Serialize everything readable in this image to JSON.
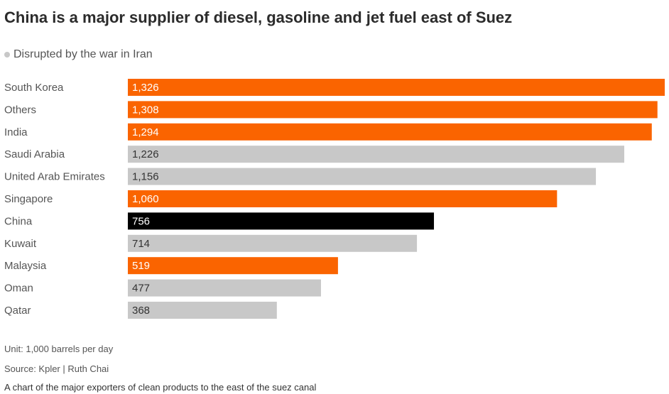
{
  "title": "China is a major supplier of diesel, gasoline and jet fuel east of Suez",
  "legend": {
    "label": "Disrupted by the war in Iran",
    "color": "#c8c8c8"
  },
  "colors": {
    "disrupted": "#c8c8c8",
    "highlight_orange": "#fa6400",
    "china": "#000000"
  },
  "chart_data": {
    "type": "bar",
    "orientation": "horizontal",
    "categories": [
      "South Korea",
      "Others",
      "India",
      "Saudi Arabia",
      "United Arab Emirates",
      "Singapore",
      "China",
      "Kuwait",
      "Malaysia",
      "Oman",
      "Qatar"
    ],
    "values": [
      1326,
      1308,
      1294,
      1226,
      1156,
      1060,
      756,
      714,
      519,
      477,
      368
    ],
    "value_labels": [
      "1,326",
      "1,308",
      "1,294",
      "1,226",
      "1,156",
      "1,060",
      "756",
      "714",
      "519",
      "477",
      "368"
    ],
    "bar_groups": [
      "orange",
      "orange",
      "orange",
      "disrupted",
      "disrupted",
      "orange",
      "china",
      "disrupted",
      "orange",
      "disrupted",
      "disrupted"
    ],
    "xlim": [
      0,
      1326
    ],
    "grid": false,
    "legend_position": "top-left"
  },
  "footer": {
    "unit": "Unit: 1,000 barrels per day",
    "source": "Source: Kpler | Ruth Chai",
    "caption": "A chart of the major exporters of clean products to the east of the suez canal"
  }
}
